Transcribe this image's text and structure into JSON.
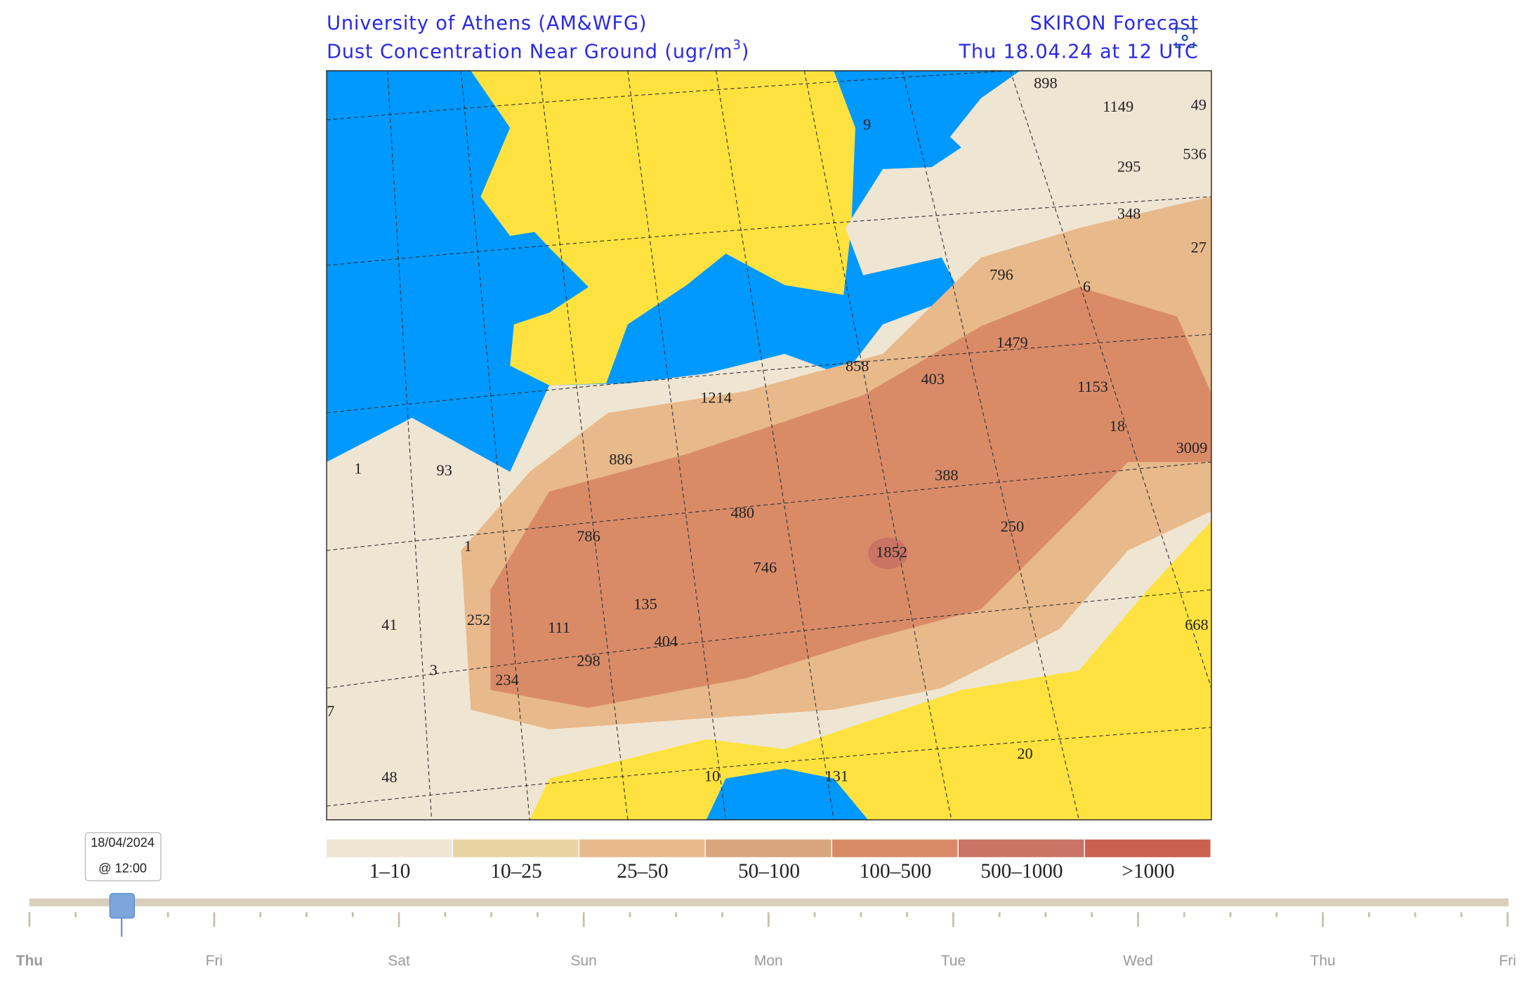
{
  "header": {
    "left_line1": "University of Athens (AM&WFG)",
    "left_line2": "Dust Concentration Near Ground (ugr/m",
    "left_line2_sup": "3",
    "left_line2_end": ")",
    "right_line1": "SKIRON Forecast",
    "right_line2": "Thu 18.04.24 at 12 UTC"
  },
  "map": {
    "ocean_color": "#0099ff",
    "no_dust_color": "#ffe23f",
    "labels": [
      "898",
      "1149",
      "49",
      "9",
      "536",
      "295",
      "348",
      "27",
      "796",
      "6",
      "1479",
      "858",
      "403",
      "1214",
      "1153",
      "18",
      "3009",
      "886",
      "93",
      "1",
      "1",
      "388",
      "480",
      "250",
      "786",
      "1852",
      "746",
      "135",
      "111",
      "252",
      "41",
      "404",
      "298",
      "3",
      "234",
      "668",
      "7",
      "20",
      "10",
      "131",
      "48"
    ]
  },
  "legend": {
    "items": [
      {
        "label": "1–10",
        "color": "#efe5d3"
      },
      {
        "label": "10–25",
        "color": "#e8d3a4"
      },
      {
        "label": "25–50",
        "color": "#e8b98a"
      },
      {
        "label": "50–100",
        "color": "#d9a57f"
      },
      {
        "label": "100–500",
        "color": "#d98b68"
      },
      {
        "label": "500–1000",
        "color": "#c97465"
      },
      {
        "label": ">1000",
        "color": "#c96050"
      }
    ]
  },
  "timeline": {
    "tooltip_date": "18/04/2024",
    "tooltip_time": "@ 12:00",
    "days": [
      "Thu",
      "Fri",
      "Sat",
      "Sun",
      "Mon",
      "Tue",
      "Wed",
      "Thu",
      "Fri"
    ]
  }
}
